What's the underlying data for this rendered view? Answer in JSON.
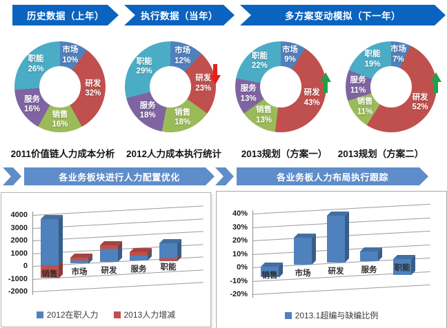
{
  "top_banners": [
    {
      "label": "历史数据（上年）"
    },
    {
      "label": "执行数据（当年）"
    },
    {
      "label": "多方案变动模拟（下一年）"
    }
  ],
  "section_banners": [
    {
      "label": "各业务板块进行人力配置优化"
    },
    {
      "label": "各业务板人力布局执行跟踪"
    }
  ],
  "colors": {
    "top_banner": "#0A63BE",
    "section_banner": "#5E8DC9",
    "market_blue": "#4F81BD",
    "rd_red": "#C0504D",
    "sales_green": "#9BBB59",
    "service_purple": "#8064A2",
    "function_cyan": "#4BACC6",
    "trend_up": "#1FA048",
    "trend_down": "#E32219",
    "gridline": "#9a9a9a"
  },
  "chart_data": [
    {
      "type": "pie",
      "subtype": "donut",
      "title": "2011价值链人力成本分析",
      "trend": null,
      "segments": [
        {
          "label": "市场",
          "value": 10,
          "color": "#4F81BD"
        },
        {
          "label": "研发",
          "value": 32,
          "color": "#C0504D"
        },
        {
          "label": "销售",
          "value": 16,
          "color": "#9BBB59"
        },
        {
          "label": "服务",
          "value": 16,
          "color": "#8064A2"
        },
        {
          "label": "职能",
          "value": 26,
          "color": "#4BACC6"
        }
      ]
    },
    {
      "type": "pie",
      "subtype": "donut",
      "title": "2012人力成本执行统计",
      "trend": "down",
      "segments": [
        {
          "label": "市场",
          "value": 12,
          "color": "#4F81BD"
        },
        {
          "label": "研发",
          "value": 23,
          "color": "#C0504D"
        },
        {
          "label": "销售",
          "value": 18,
          "color": "#9BBB59"
        },
        {
          "label": "服务",
          "value": 18,
          "color": "#8064A2"
        },
        {
          "label": "职能",
          "value": 29,
          "color": "#4BACC6"
        }
      ]
    },
    {
      "type": "pie",
      "subtype": "donut",
      "title": "2013规划（方案一）",
      "trend": "up",
      "segments": [
        {
          "label": "市场",
          "value": 9,
          "color": "#4F81BD"
        },
        {
          "label": "研发",
          "value": 43,
          "color": "#C0504D"
        },
        {
          "label": "销售",
          "value": 13,
          "color": "#9BBB59"
        },
        {
          "label": "服务",
          "value": 13,
          "color": "#8064A2"
        },
        {
          "label": "职能",
          "value": 22,
          "color": "#4BACC6"
        }
      ]
    },
    {
      "type": "pie",
      "subtype": "donut",
      "title": "2013规划（方案二）",
      "trend": "up",
      "segments": [
        {
          "label": "市场",
          "value": 7,
          "color": "#4F81BD"
        },
        {
          "label": "研发",
          "value": 52,
          "color": "#C0504D"
        },
        {
          "label": "销售",
          "value": 11,
          "color": "#9BBB59"
        },
        {
          "label": "服务",
          "value": 11,
          "color": "#8064A2"
        },
        {
          "label": "职能",
          "value": 19,
          "color": "#4BACC6"
        }
      ]
    },
    {
      "type": "bar",
      "subtype": "3d-column-stacked",
      "categories": [
        "销售",
        "市场",
        "研发",
        "服务",
        "职能"
      ],
      "series": [
        {
          "name": "2012在职人力",
          "color": "#4F81BD",
          "values": [
            3600,
            250,
            1000,
            350,
            1200
          ]
        },
        {
          "name": "2013人力增减",
          "color": "#C0504D",
          "values": [
            -1000,
            200,
            300,
            250,
            -200
          ]
        }
      ],
      "ylim": [
        -2000,
        4000
      ],
      "ytick": 1000,
      "yformat": "",
      "yticks": [
        "4000",
        "3000",
        "2000",
        "1000",
        "0",
        "-1000",
        "-2000"
      ],
      "grid": true,
      "legend_position": "bottom"
    },
    {
      "type": "bar",
      "subtype": "3d-column",
      "categories": [
        "销售",
        "市场",
        "研发",
        "服务",
        "职能"
      ],
      "series": [
        {
          "name": "2013.1超编与缺编比例",
          "color": "#4F81BD",
          "values": [
            -8,
            20,
            35,
            7,
            -12
          ]
        }
      ],
      "ylim": [
        -20,
        40
      ],
      "ytick": 10,
      "yformat": "%",
      "yticks": [
        "40%",
        "30%",
        "20%",
        "10%",
        "0%",
        "-10%",
        "-20%"
      ],
      "grid": true,
      "legend_position": "bottom"
    }
  ]
}
